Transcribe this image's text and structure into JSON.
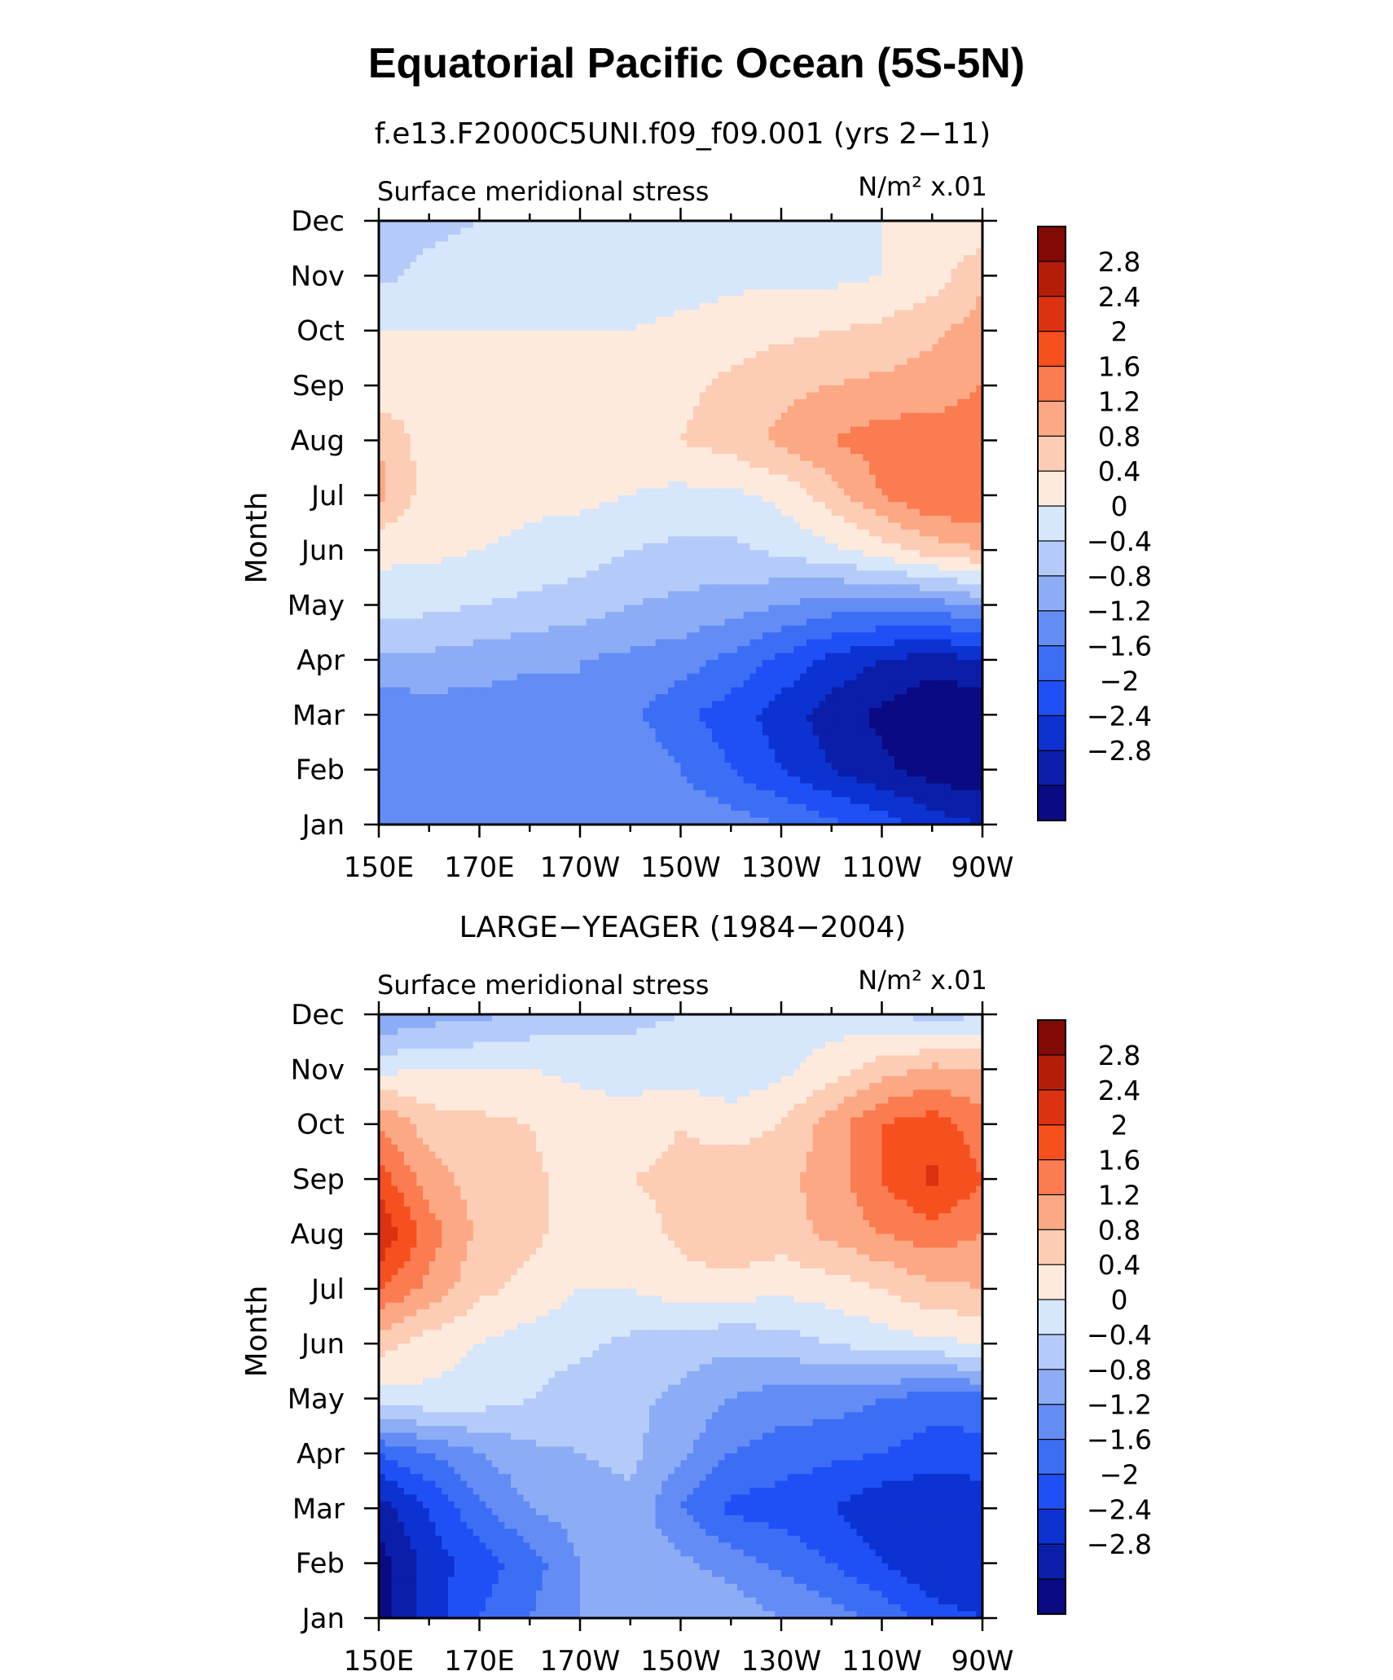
{
  "title": "Equatorial Pacific Ocean (5S-5N)",
  "colors": {
    "levels": [
      "#0a0a82",
      "#0b1eaa",
      "#0c32d2",
      "#1e50f5",
      "#3c6ef5",
      "#648cf5",
      "#8cacf5",
      "#b4caf8",
      "#d6e6fb",
      "#feeadc",
      "#fcccb4",
      "#fca884",
      "#fa7c50",
      "#f6501e",
      "#dc3210",
      "#b41e08",
      "#820a04"
    ],
    "contour_levels": [
      -2.8,
      -2.4,
      -2,
      -1.6,
      -1.2,
      -0.8,
      -0.4,
      0,
      0.4,
      0.8,
      1.2,
      1.6,
      2,
      2.4,
      2.8
    ]
  },
  "chart_data": [
    {
      "type": "heatmap",
      "title": "f.e13.F2000C5UNI.f09_f09.001 (yrs 2−11)",
      "left_string": "Surface meridional stress",
      "right_string": "N/m² x.01",
      "ylabel": "Month",
      "x_ticks": [
        "150E",
        "170E",
        "170W",
        "150W",
        "130W",
        "110W",
        "90W"
      ],
      "x": [
        150,
        160,
        170,
        180,
        190,
        200,
        210,
        220,
        230,
        240,
        250,
        260,
        270
      ],
      "y_ticks": [
        "Jan",
        "Feb",
        "Mar",
        "Apr",
        "May",
        "Jun",
        "Jul",
        "Aug",
        "Sep",
        "Oct",
        "Nov",
        "Dec"
      ],
      "colorbar_labels": [
        "2.8",
        "2.4",
        "2",
        "1.6",
        "1.2",
        "0.8",
        "0.4",
        "0",
        "−0.4",
        "−0.8",
        "−1.2",
        "−1.6",
        "−2",
        "−2.4",
        "−2.8"
      ],
      "z": [
        [
          -1.2,
          -1.1,
          -1.0,
          -0.9,
          -0.8,
          -0.8,
          -0.9,
          -1.0,
          -1.2,
          -1.5,
          -1.8,
          -2.2,
          -2.4
        ],
        [
          -1.2,
          -1.1,
          -1.1,
          -1.0,
          -0.8,
          -0.9,
          -1.2,
          -1.6,
          -2.0,
          -2.4,
          -2.7,
          -3.0,
          -3.1
        ],
        [
          -1.1,
          -1.0,
          -1.0,
          -1.1,
          -0.8,
          -1.1,
          -1.5,
          -1.8,
          -2.2,
          -2.6,
          -2.9,
          -3.2,
          -3.2
        ],
        [
          -0.5,
          -0.5,
          -0.6,
          -0.7,
          -0.8,
          -0.9,
          -1.0,
          -1.3,
          -1.7,
          -2.1,
          -2.4,
          -2.6,
          -2.4
        ],
        [
          0.2,
          0.1,
          0.0,
          -0.1,
          -0.2,
          -0.4,
          -0.5,
          -0.6,
          -0.8,
          -1.0,
          -1.0,
          -1.0,
          -0.7
        ],
        [
          0.5,
          0.5,
          0.4,
          0.3,
          0.2,
          0.0,
          -0.1,
          -0.1,
          0.1,
          0.3,
          0.6,
          1.0,
          1.2
        ],
        [
          1.3,
          0.6,
          0.6,
          0.5,
          0.5,
          0.4,
          0.3,
          0.3,
          0.5,
          1.0,
          1.6,
          2.0,
          2.0
        ],
        [
          1.2,
          0.6,
          0.6,
          0.6,
          0.6,
          0.5,
          0.8,
          1.0,
          1.3,
          1.6,
          1.8,
          1.8,
          1.8
        ],
        [
          0.5,
          0.5,
          0.5,
          0.5,
          0.5,
          0.5,
          0.7,
          0.9,
          1.1,
          1.2,
          1.3,
          1.4,
          1.6
        ],
        [
          0.4,
          0.4,
          0.4,
          0.4,
          0.4,
          0.4,
          0.5,
          0.6,
          0.7,
          0.8,
          0.9,
          1.1,
          1.4
        ],
        [
          -0.1,
          0.1,
          0.2,
          0.2,
          0.2,
          0.2,
          0.2,
          0.3,
          0.3,
          0.3,
          0.4,
          0.6,
          1.1
        ],
        [
          -0.2,
          -0.1,
          0.0,
          0.1,
          0.2,
          0.3,
          0.3,
          0.3,
          0.3,
          0.3,
          0.4,
          0.6,
          0.5
        ]
      ]
    },
    {
      "type": "heatmap",
      "title": "LARGE−YEAGER (1984−2004)",
      "left_string": "Surface meridional stress",
      "right_string": "N/m² x.01",
      "ylabel": "Month",
      "x_ticks": [
        "150E",
        "170E",
        "170W",
        "150W",
        "130W",
        "110W",
        "90W"
      ],
      "x": [
        150,
        160,
        170,
        180,
        190,
        200,
        210,
        220,
        230,
        240,
        250,
        260,
        270
      ],
      "y_ticks": [
        "Jan",
        "Feb",
        "Mar",
        "Apr",
        "May",
        "Jun",
        "Jul",
        "Aug",
        "Sep",
        "Oct",
        "Nov",
        "Dec"
      ],
      "colorbar_labels": [
        "2.8",
        "2.4",
        "2",
        "1.6",
        "1.2",
        "0.8",
        "0.4",
        "0",
        "−0.4",
        "−0.8",
        "−1.2",
        "−1.6",
        "−2",
        "−2.4",
        "−2.8"
      ],
      "z": [
        [
          -3.0,
          -2.2,
          -1.6,
          -1.2,
          -0.8,
          -0.6,
          -0.4,
          -0.5,
          -0.8,
          -1.0,
          -1.3,
          -1.8,
          -2.0
        ],
        [
          -3.0,
          -2.2,
          -1.8,
          -1.4,
          -0.8,
          -0.5,
          -0.7,
          -1.0,
          -1.3,
          -1.6,
          -2.0,
          -2.4,
          -2.4
        ],
        [
          -2.6,
          -2.0,
          -1.3,
          -0.8,
          -0.6,
          -0.5,
          -1.2,
          -1.7,
          -1.8,
          -2.0,
          -2.3,
          -2.4,
          -2.2
        ],
        [
          -1.6,
          -1.2,
          -0.8,
          -0.5,
          -0.4,
          -0.3,
          -0.7,
          -1.2,
          -1.4,
          -1.5,
          -1.6,
          -1.8,
          -1.8
        ],
        [
          0.2,
          0.3,
          0.2,
          0.0,
          -0.2,
          -0.3,
          -0.5,
          -0.8,
          -1.0,
          -1.0,
          -1.2,
          -1.4,
          -1.3
        ],
        [
          1.0,
          0.6,
          0.4,
          0.2,
          0.1,
          -0.1,
          -0.2,
          -0.3,
          -0.2,
          0.0,
          0.2,
          0.3,
          0.4
        ],
        [
          2.0,
          1.5,
          0.9,
          0.7,
          0.4,
          0.4,
          0.6,
          0.6,
          0.5,
          0.6,
          0.8,
          1.1,
          1.2
        ],
        [
          2.8,
          1.8,
          1.1,
          0.9,
          0.6,
          0.6,
          0.9,
          1.2,
          1.0,
          1.3,
          1.6,
          1.8,
          1.6
        ],
        [
          2.2,
          1.4,
          1.0,
          0.9,
          0.6,
          0.8,
          0.9,
          1.1,
          1.1,
          1.4,
          2.0,
          2.5,
          2.0
        ],
        [
          1.6,
          1.0,
          0.9,
          0.8,
          0.6,
          0.6,
          0.8,
          0.6,
          0.8,
          1.4,
          2.0,
          2.2,
          1.8
        ],
        [
          0.3,
          0.4,
          0.4,
          0.4,
          0.3,
          0.2,
          0.2,
          0.1,
          0.3,
          0.6,
          1.0,
          1.3,
          1.2
        ],
        [
          -0.8,
          -0.6,
          -0.5,
          -0.3,
          -0.2,
          -0.1,
          0.0,
          0.2,
          0.2,
          0.2,
          0.1,
          -0.2,
          0.0
        ]
      ]
    }
  ]
}
